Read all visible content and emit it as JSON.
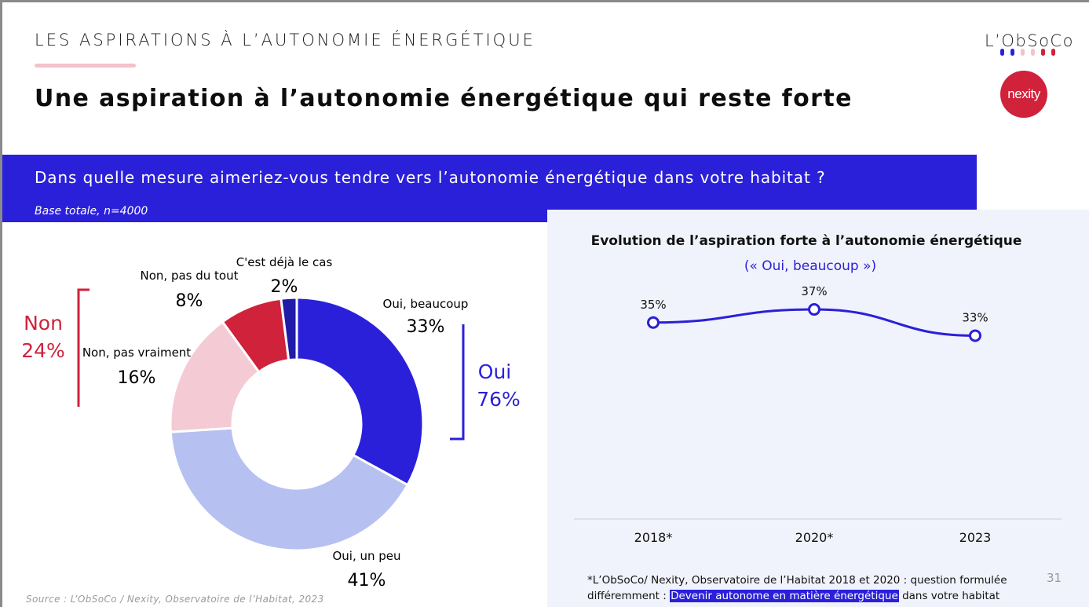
{
  "header": {
    "kicker": "LES ASPIRATIONS À L’AUTONOMIE ÉNERGÉTIQUE",
    "title": "Une aspiration à l’autonomie énergétique qui reste forte"
  },
  "logos": {
    "obsoco_text": "L’ObSoCo",
    "nexity_text": "nexity",
    "obsoco_dot_colors": [
      "#2b20d9",
      "#2b20d9",
      "#f4c2cb",
      "#f4c2cb",
      "#d0223a",
      "#d0223a"
    ]
  },
  "question": {
    "text": "Dans quelle mesure aimeriez-vous tendre vers l’autonomie énergétique dans votre habitat ?",
    "base": "Base totale, n=4000"
  },
  "colors": {
    "brand_blue": "#2b20d9",
    "light_blue": "#b6c1f1",
    "light_pink": "#f4cbd5",
    "red": "#d0223a",
    "dark_navy": "#1f1aa8"
  },
  "groups": {
    "non": {
      "label": "Non",
      "value": "24%"
    },
    "oui": {
      "label": "Oui",
      "value": "76%"
    }
  },
  "chart_data": [
    {
      "type": "pie",
      "variant": "donut",
      "categories": [
        "Oui, beaucoup",
        "Oui, un peu",
        "Non, pas vraiment",
        "Non, pas du tout",
        "C'est déjà le cas"
      ],
      "values": [
        33,
        41,
        16,
        8,
        2
      ],
      "value_labels": [
        "33%",
        "41%",
        "16%",
        "8%",
        "2%"
      ],
      "colors": [
        "#2b20d9",
        "#b6c1f1",
        "#f4cbd5",
        "#d0223a",
        "#1f1aa8"
      ]
    },
    {
      "type": "line",
      "title": "Evolution de l’aspiration forte à l’autonomie énergétique",
      "subtitle": "(« Oui, beaucoup »)",
      "categories": [
        "2018*",
        "2020*",
        "2023"
      ],
      "series": [
        {
          "values": [
            35,
            37,
            33
          ],
          "value_labels": [
            "35%",
            "37%",
            "33%"
          ]
        }
      ],
      "ylim": [
        0,
        40
      ],
      "grid": false,
      "color": "#2b20d9"
    }
  ],
  "footnote": {
    "line1": "*L’ObSoCo/ Nexity, Observatoire de l’Habitat 2018 et 2020 : question formulée",
    "line2_prefix": "différemment : ",
    "line2_highlight": "Devenir autonome en matière énergétique",
    "line2_suffix": " dans votre habitat"
  },
  "page_number": "31",
  "source": "Source : L’ObSoCo / Nexity, Observatoire de l’Habitat, 2023"
}
